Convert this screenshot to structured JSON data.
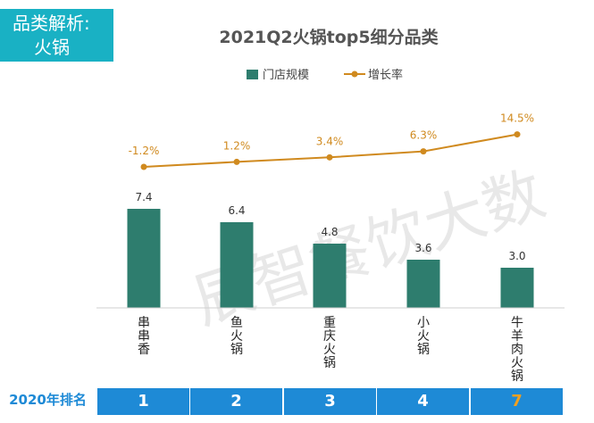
{
  "header": {
    "category_line1": "品类解析:",
    "category_line2": "火锅"
  },
  "watermark": "辰智餐饮大数",
  "chart_data": {
    "type": "bar+line",
    "title": "2021Q2火锅top5细分品类",
    "categories": [
      "串串香",
      "鱼火锅",
      "重庆火锅",
      "小火锅",
      "牛羊肉火锅"
    ],
    "series": [
      {
        "name": "门店规模",
        "type": "bar",
        "color": "#2e7d6e",
        "values": [
          7.4,
          6.4,
          4.8,
          3.6,
          3.0
        ],
        "labels": [
          "7.4",
          "6.4",
          "4.8",
          "3.6",
          "3.0"
        ]
      },
      {
        "name": "增长率",
        "type": "line",
        "color": "#d08a1f",
        "values": [
          -1.2,
          1.2,
          3.4,
          6.3,
          14.5
        ],
        "labels": [
          "-1.2%",
          "1.2%",
          "3.4%",
          "6.3%",
          "14.5%"
        ]
      }
    ],
    "legend": "top-center"
  },
  "rank": {
    "label": "2020年排名",
    "values": [
      "1",
      "2",
      "3",
      "4",
      "7"
    ],
    "highlight_index": 4
  }
}
